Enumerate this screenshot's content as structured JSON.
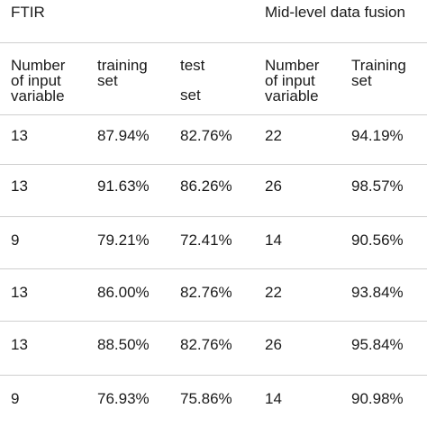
{
  "titles": {
    "ftir": "FTIR",
    "fusion": "Mid-level data fusion"
  },
  "headers": {
    "number_input_variable": [
      "Number",
      "of input",
      "variable"
    ],
    "training_set": [
      "training",
      "set"
    ],
    "test_set": [
      "test",
      "set"
    ],
    "fusion_number_input_variable": [
      "Number",
      "of input",
      "variable"
    ],
    "fusion_training_set": [
      "Training",
      "set"
    ]
  },
  "rows": [
    {
      "vars": "13",
      "train": "87.94%",
      "test": "82.76%",
      "fusion_vars": "22",
      "fusion_train": "94.19%"
    },
    {
      "vars": "13",
      "train": "91.63%",
      "test": "86.26%",
      "fusion_vars": "26",
      "fusion_train": "98.57%"
    },
    {
      "vars": "9",
      "train": "79.21%",
      "test": "72.41%",
      "fusion_vars": "14",
      "fusion_train": "90.56%"
    },
    {
      "vars": "13",
      "train": "86.00%",
      "test": "82.76%",
      "fusion_vars": "22",
      "fusion_train": "93.84%"
    },
    {
      "vars": "13",
      "train": "88.50%",
      "test": "82.76%",
      "fusion_vars": "26",
      "fusion_train": "95.84%"
    },
    {
      "vars": "9",
      "train": "76.93%",
      "test": "75.86%",
      "fusion_vars": "14",
      "fusion_train": "90.98%"
    }
  ]
}
